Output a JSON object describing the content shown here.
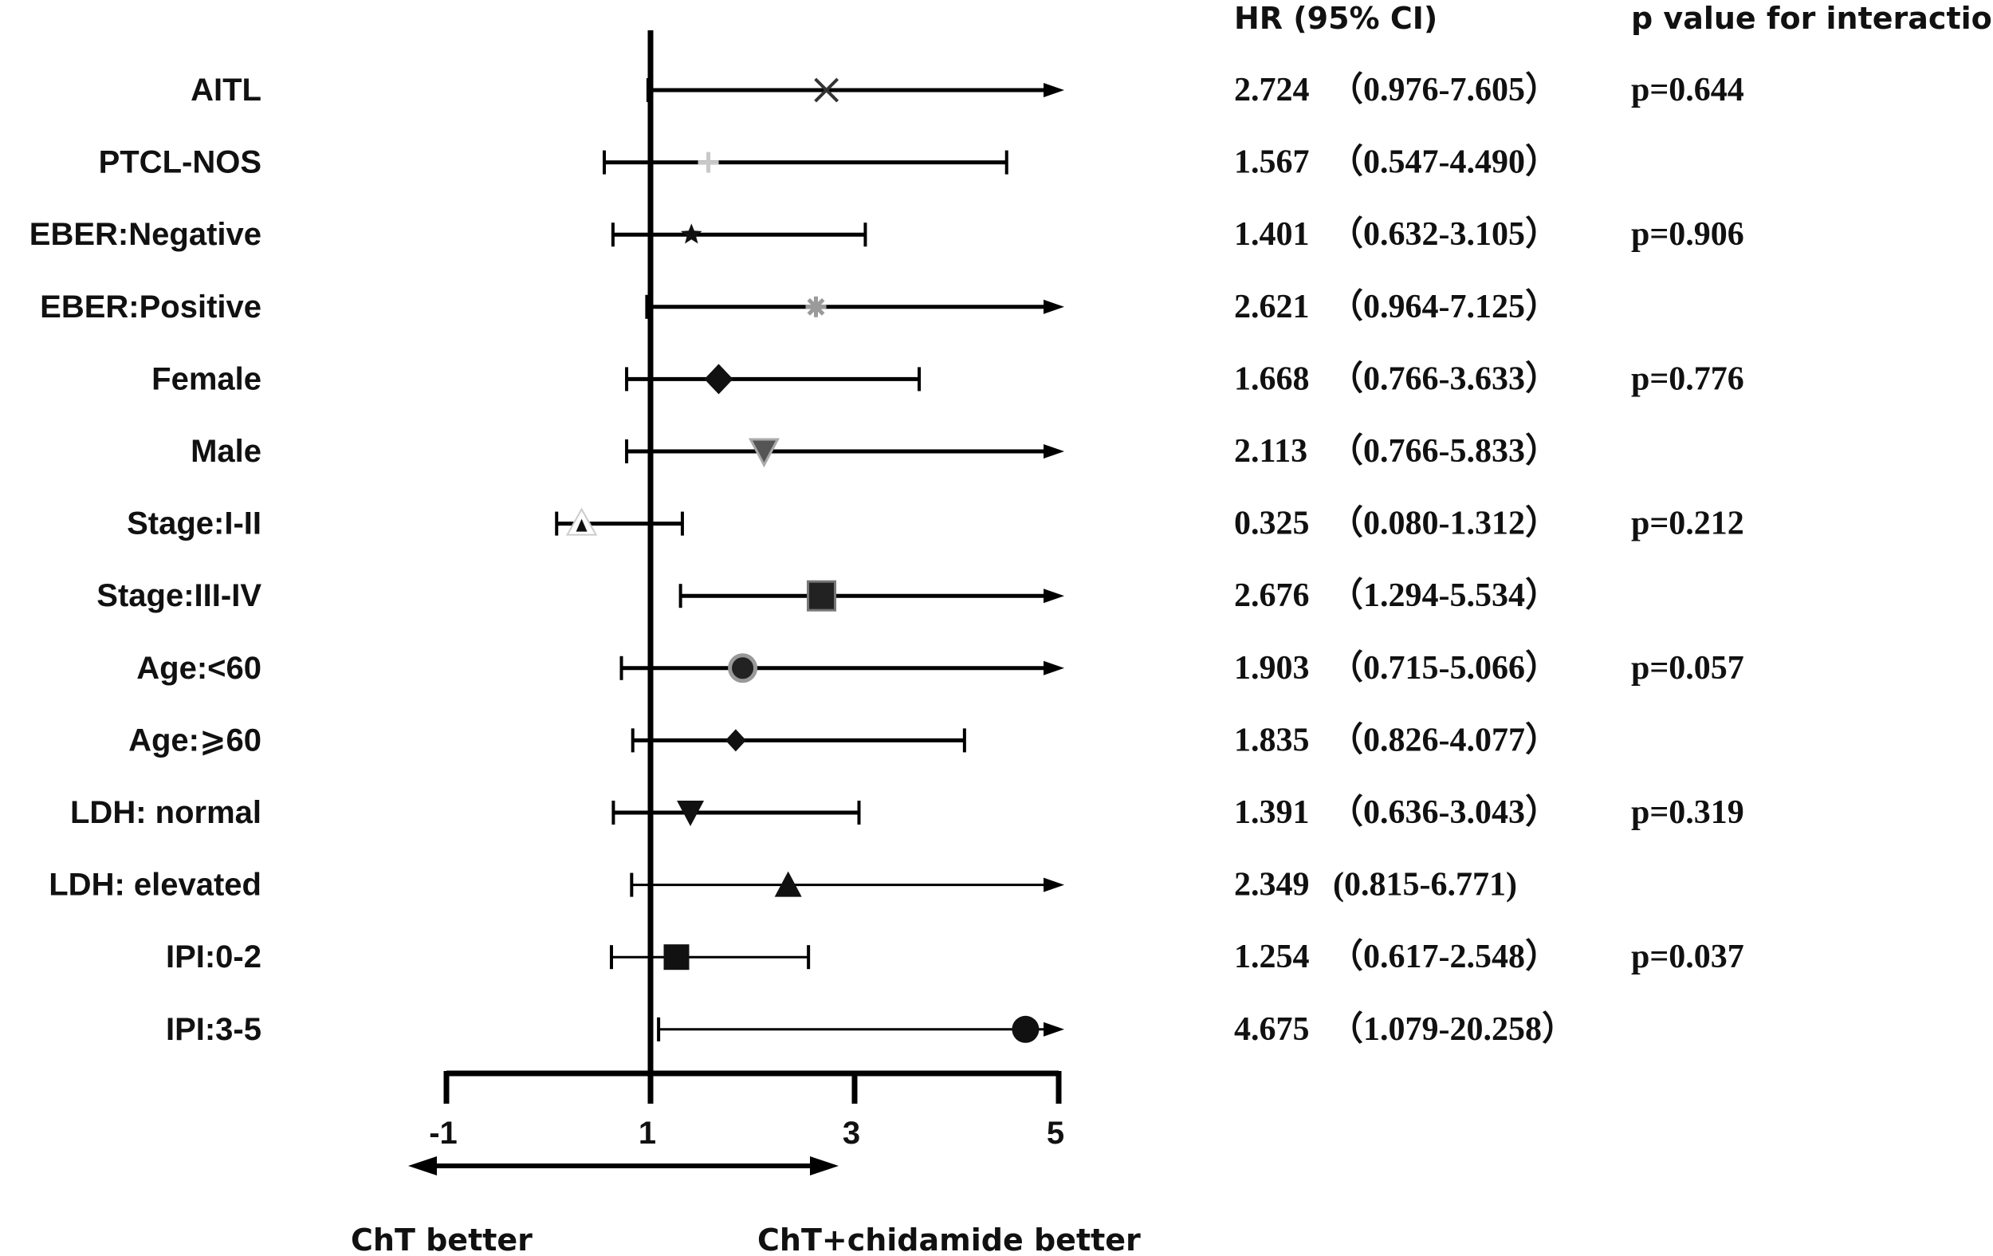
{
  "chart_data": {
    "type": "forest",
    "headers": {
      "hr": "HR (95% CI)",
      "p": "p value for interaction"
    },
    "axis": {
      "ticks": [
        "-1",
        "1",
        "3",
        "5"
      ],
      "xlim": [
        -1,
        5
      ],
      "null_line": 1
    },
    "direction": {
      "left": "ChT better",
      "right": "ChT+chidamide better"
    },
    "rows": [
      {
        "label": "AITL",
        "hr": 2.724,
        "lo": 0.976,
        "hi": 7.605,
        "hr_text": "2.724",
        "ci_text": "（0.976-7.605）",
        "p": "p=0.644",
        "marker": "x-icon",
        "arrow": true
      },
      {
        "label": "PTCL-NOS",
        "hr": 1.567,
        "lo": 0.547,
        "hi": 4.49,
        "hr_text": "1.567",
        "ci_text": "（0.547-4.490）",
        "p": "",
        "marker": "plus-icon",
        "arrow": false
      },
      {
        "label": "EBER:Negative",
        "hr": 1.401,
        "lo": 0.632,
        "hi": 3.105,
        "hr_text": "1.401",
        "ci_text": "（0.632-3.105）",
        "p": "p=0.906",
        "marker": "star-icon",
        "arrow": false
      },
      {
        "label": "EBER:Positive",
        "hr": 2.621,
        "lo": 0.964,
        "hi": 7.125,
        "hr_text": "2.621",
        "ci_text": "（0.964-7.125）",
        "p": "",
        "marker": "asterisk-icon",
        "arrow": true
      },
      {
        "label": "Female",
        "hr": 1.668,
        "lo": 0.766,
        "hi": 3.633,
        "hr_text": "1.668",
        "ci_text": "（0.766-3.633）",
        "p": "p=0.776",
        "marker": "diamond-icon",
        "arrow": false
      },
      {
        "label": "Male",
        "hr": 2.113,
        "lo": 0.766,
        "hi": 5.833,
        "hr_text": "2.113",
        "ci_text": "（0.766-5.833）",
        "p": "",
        "marker": "triangle-down-gray-icon",
        "arrow": true
      },
      {
        "label": "Stage:I-II",
        "hr": 0.325,
        "lo": 0.08,
        "hi": 1.312,
        "hr_text": "0.325",
        "ci_text": "（0.080-1.312）",
        "p": "p=0.212",
        "marker": "triangle-up-small-icon",
        "arrow": false
      },
      {
        "label": "Stage:III-IV",
        "hr": 2.676,
        "lo": 1.294,
        "hi": 5.534,
        "hr_text": "2.676",
        "ci_text": "（1.294-5.534）",
        "p": "",
        "marker": "square-large-icon",
        "arrow": true
      },
      {
        "label": "Age:<60",
        "hr": 1.903,
        "lo": 0.715,
        "hi": 5.066,
        "hr_text": "1.903",
        "ci_text": "（0.715-5.066）",
        "p": "p=0.057",
        "marker": "circle-gray-ring-icon",
        "arrow": true
      },
      {
        "label": "Age:⩾60",
        "hr": 1.835,
        "lo": 0.826,
        "hi": 4.077,
        "hr_text": "1.835",
        "ci_text": "（0.826-4.077）",
        "p": "",
        "marker": "diamond-small-icon",
        "arrow": false
      },
      {
        "label": "LDH: normal",
        "hr": 1.391,
        "lo": 0.636,
        "hi": 3.043,
        "hr_text": "1.391",
        "ci_text": "（0.636-3.043）",
        "p": "p=0.319",
        "marker": "triangle-down-icon",
        "arrow": false
      },
      {
        "label": "LDH: elevated",
        "hr": 2.349,
        "lo": 0.815,
        "hi": 6.771,
        "hr_text": "2.349",
        "ci_text": "(0.815-6.771)",
        "p": "",
        "marker": "triangle-up-icon",
        "arrow": true
      },
      {
        "label": "IPI:0-2",
        "hr": 1.254,
        "lo": 0.617,
        "hi": 2.548,
        "hr_text": "1.254",
        "ci_text": "（0.617-2.548）",
        "p": "p=0.037",
        "marker": "square-icon",
        "arrow": false
      },
      {
        "label": "IPI:3-5",
        "hr": 4.675,
        "lo": 1.079,
        "hi": 20.258,
        "hr_text": "4.675",
        "ci_text": "（1.079-20.258）",
        "p": "",
        "marker": "circle-icon",
        "arrow": true
      }
    ]
  }
}
